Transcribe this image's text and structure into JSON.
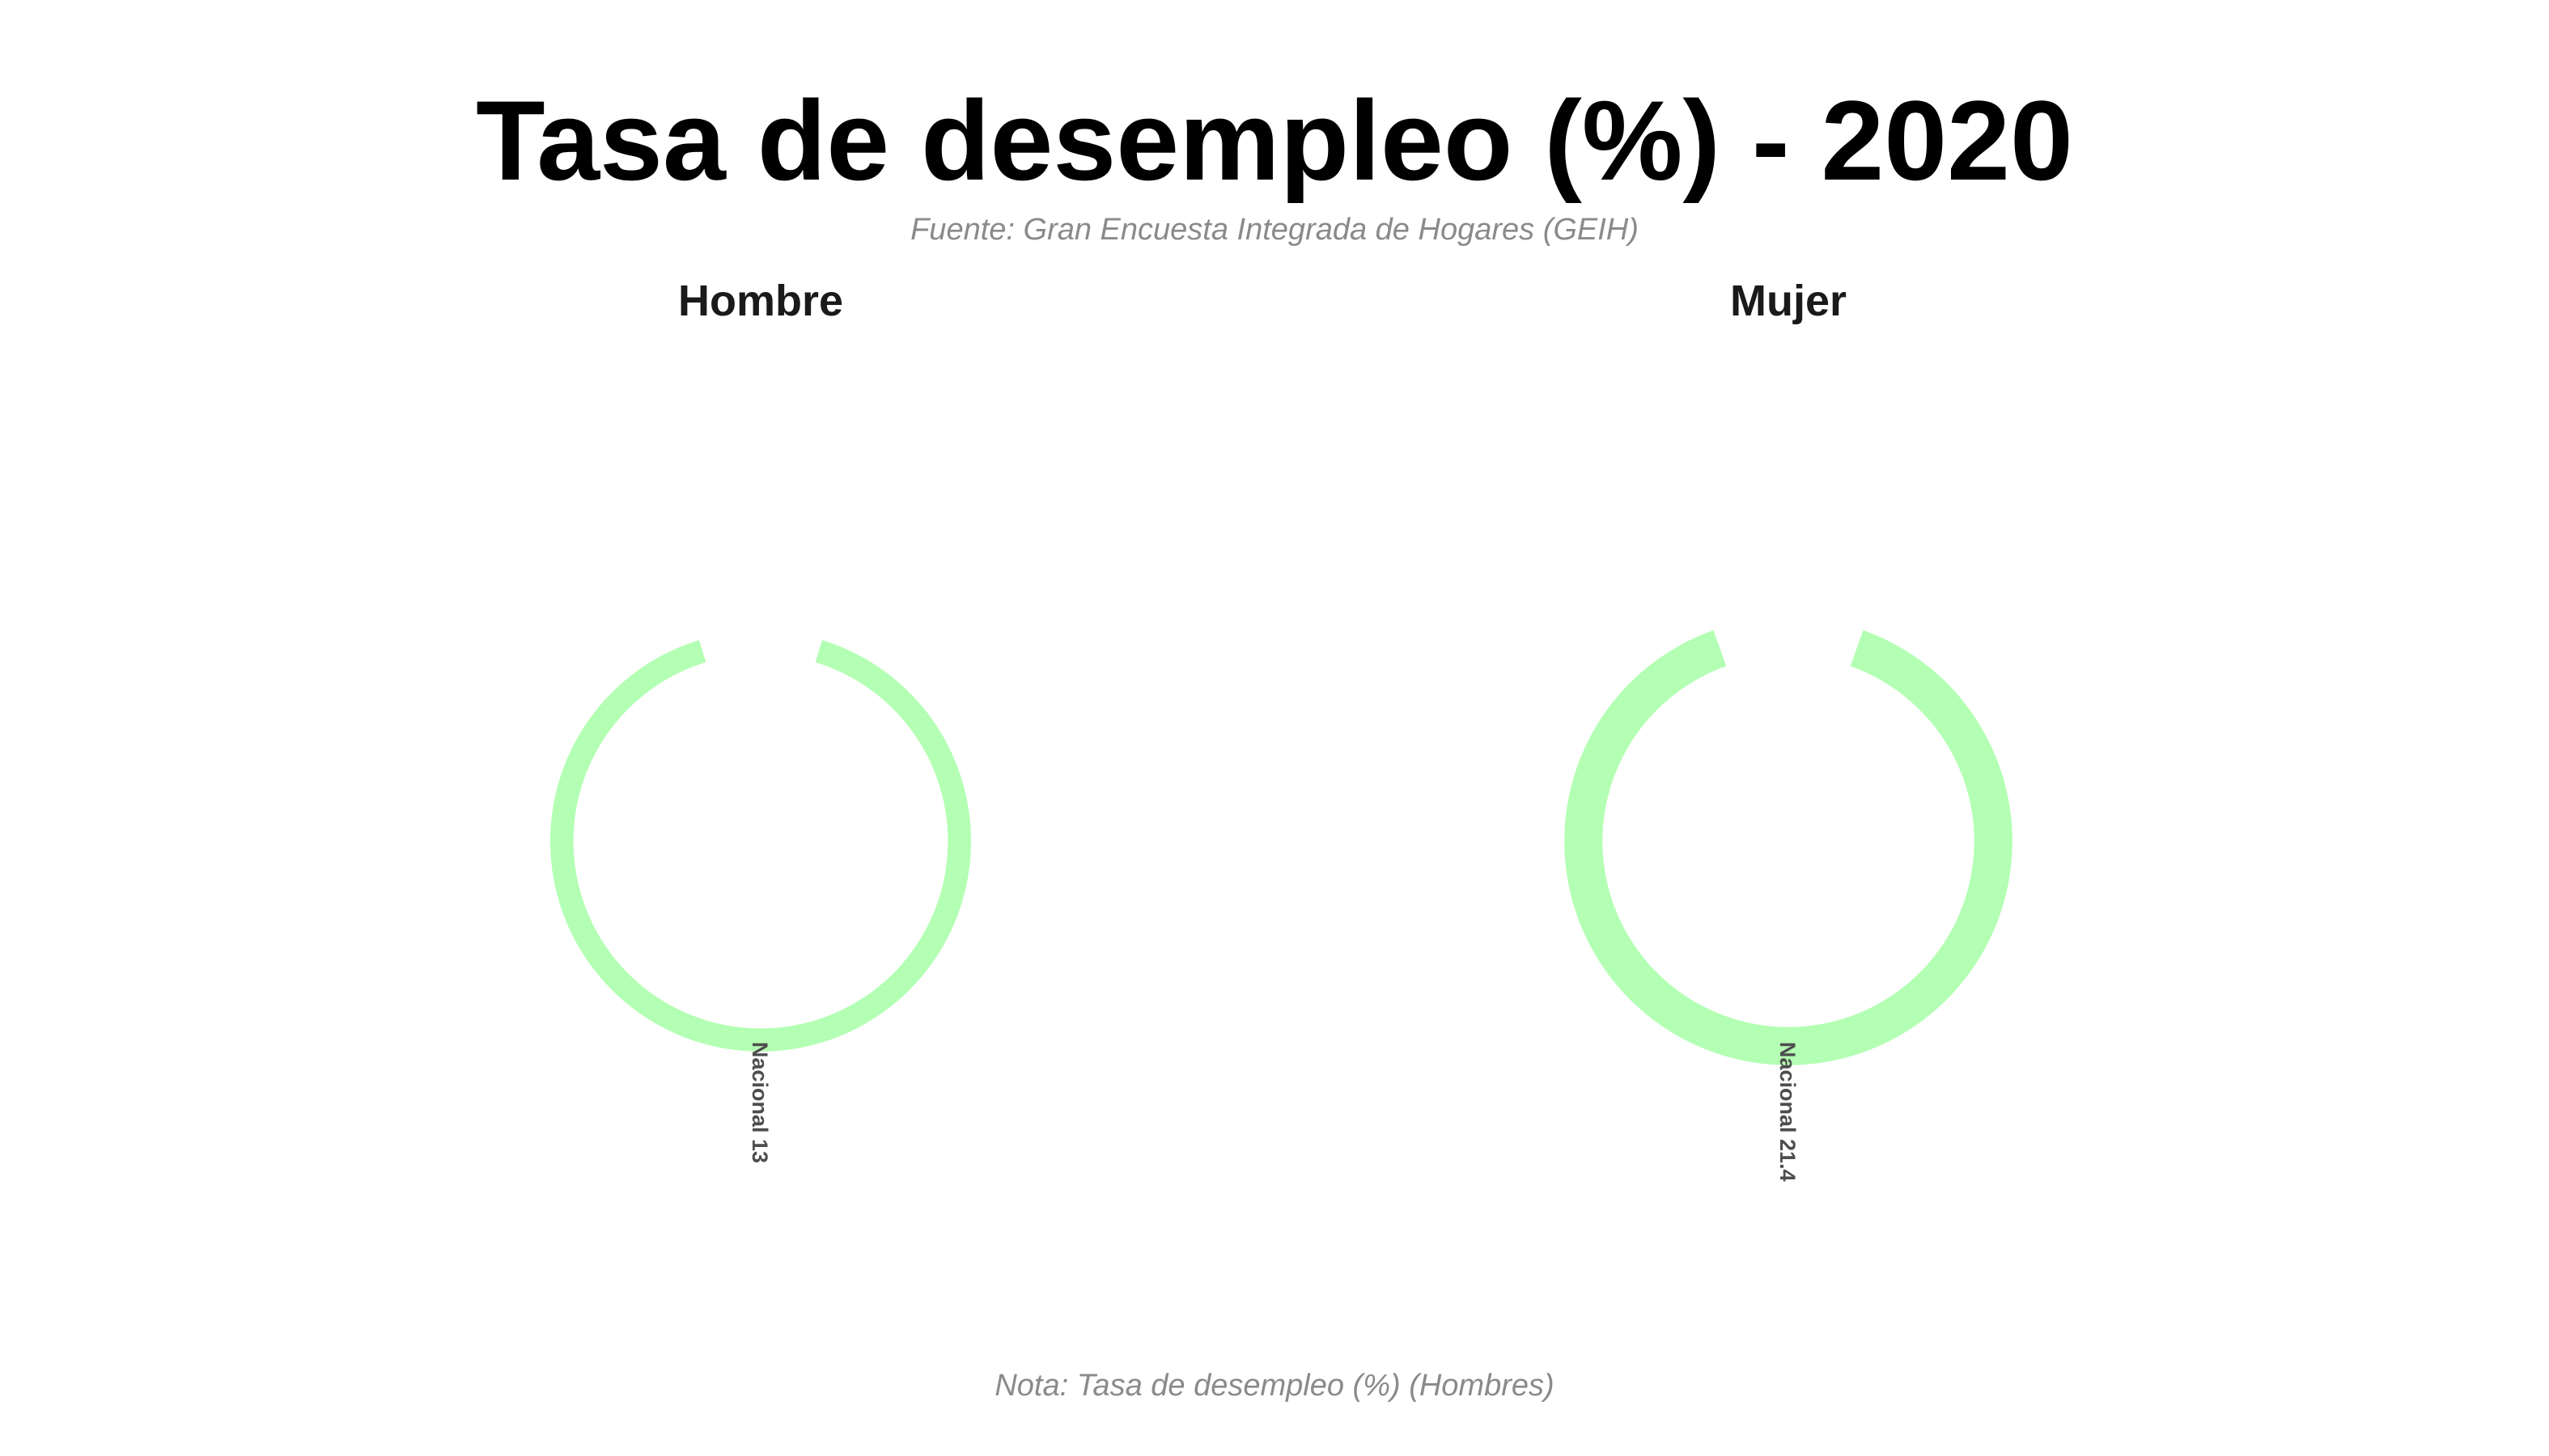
{
  "chart_data": {
    "type": "bar",
    "coord": "polar",
    "title": "Tasa de desempleo (%) - 2020",
    "subtitle": "Fuente: Gran Encuesta Integrada de Hogares (GEIH)",
    "caption": "Nota: Tasa de desempleo (%) (Hombres)",
    "bar_color": "#b3ffb3",
    "grid": false,
    "facets": [
      {
        "name": "Hombre",
        "categories": [
          "Nacional"
        ],
        "values": [
          13
        ],
        "labels": [
          "Nacional 13"
        ]
      },
      {
        "name": "Mujer",
        "categories": [
          "Nacional"
        ],
        "values": [
          21.4
        ],
        "labels": [
          "Nacional 21.4"
        ]
      }
    ]
  }
}
